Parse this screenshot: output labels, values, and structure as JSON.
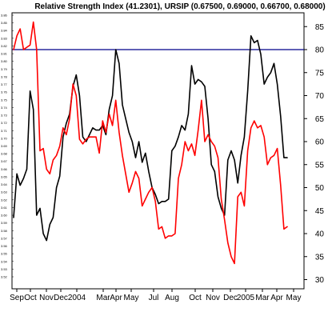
{
  "chart_data": {
    "type": "line",
    "title": "Relative Strength Index (41.2301), URSIP (0.67500, 0.69000, 0.66700, 0.68000)",
    "x_tick_labels": [
      "Sep",
      "Oct",
      "Nov",
      "Dec",
      "2004",
      "Mar",
      "Apr",
      "May",
      "Jul",
      "Aug",
      "Oct",
      "Nov",
      "Dec",
      "2005",
      "Mar",
      "Apr",
      "May"
    ],
    "y_right_ticks": [
      30,
      35,
      40,
      45,
      50,
      55,
      60,
      65,
      70,
      75,
      80,
      85
    ],
    "y_right_range": [
      28,
      88
    ],
    "y_left_ticks": [
      "3.86",
      "3.85",
      "3.84",
      "3.83",
      "3.82",
      "3.81",
      "3.80",
      "3.79",
      "3.78",
      "3.77",
      "3.76",
      "3.75",
      "3.74",
      "3.73",
      "3.72",
      "3.71",
      "3.70",
      "3.69",
      "3.68",
      "3.67",
      "3.66",
      "3.65",
      "3.64",
      "3.63",
      "3.62",
      "3.61",
      "3.60",
      "3.59",
      "3.58",
      "3.57",
      "3.56",
      "3.55",
      "3.54",
      "3.53",
      "3.52"
    ],
    "reference_line": 80,
    "grid": false,
    "series": [
      {
        "color": "#000000",
        "axis": "right",
        "values": [
          43.5,
          53,
          50.5,
          52,
          54,
          71,
          67,
          44,
          45.5,
          40,
          38.5,
          42,
          43.5,
          50,
          52.5,
          61,
          64,
          66,
          72,
          74.5,
          70,
          61,
          60,
          61.5,
          63,
          62.5,
          62.5,
          63.5,
          61.5,
          67,
          70,
          80,
          77,
          68,
          65,
          62,
          60,
          56.5,
          60,
          55.5,
          57.5,
          53.5,
          50,
          48.5,
          46.5,
          47,
          47,
          47.5,
          58,
          59,
          61,
          63.5,
          62.5,
          66,
          76.5,
          72.5,
          73.5,
          73,
          72,
          65,
          55,
          53.5,
          48,
          45.5,
          44,
          56,
          58,
          56,
          51,
          57,
          61,
          71,
          83,
          81.5,
          82,
          79,
          72.5,
          74,
          75,
          77,
          72.5,
          65.5,
          56.5,
          56.5
        ]
      },
      {
        "color": "#ff0000",
        "axis": "right",
        "values": [
          80,
          83,
          84.5,
          80,
          80.5,
          81,
          86,
          80,
          58,
          58.5,
          54,
          53,
          56,
          57,
          59,
          63,
          61.5,
          65,
          72.5,
          70,
          60.5,
          59.5,
          60.5,
          61,
          61,
          61,
          57.5,
          64.5,
          62,
          66,
          63.5,
          69,
          62,
          57,
          53,
          49,
          51,
          53.5,
          52,
          46,
          47.5,
          49,
          50,
          47,
          41,
          41.5,
          39,
          39.5,
          39.5,
          40,
          52,
          55,
          60,
          58,
          59.5,
          57,
          62.5,
          69,
          60,
          61.5,
          60,
          59,
          56.5,
          47.5,
          43,
          38,
          35,
          33.5,
          48,
          49,
          46,
          58,
          63,
          64.5,
          63,
          63.5,
          61,
          55,
          56.5,
          57,
          58.5,
          50.5,
          41,
          41.5
        ]
      }
    ]
  }
}
